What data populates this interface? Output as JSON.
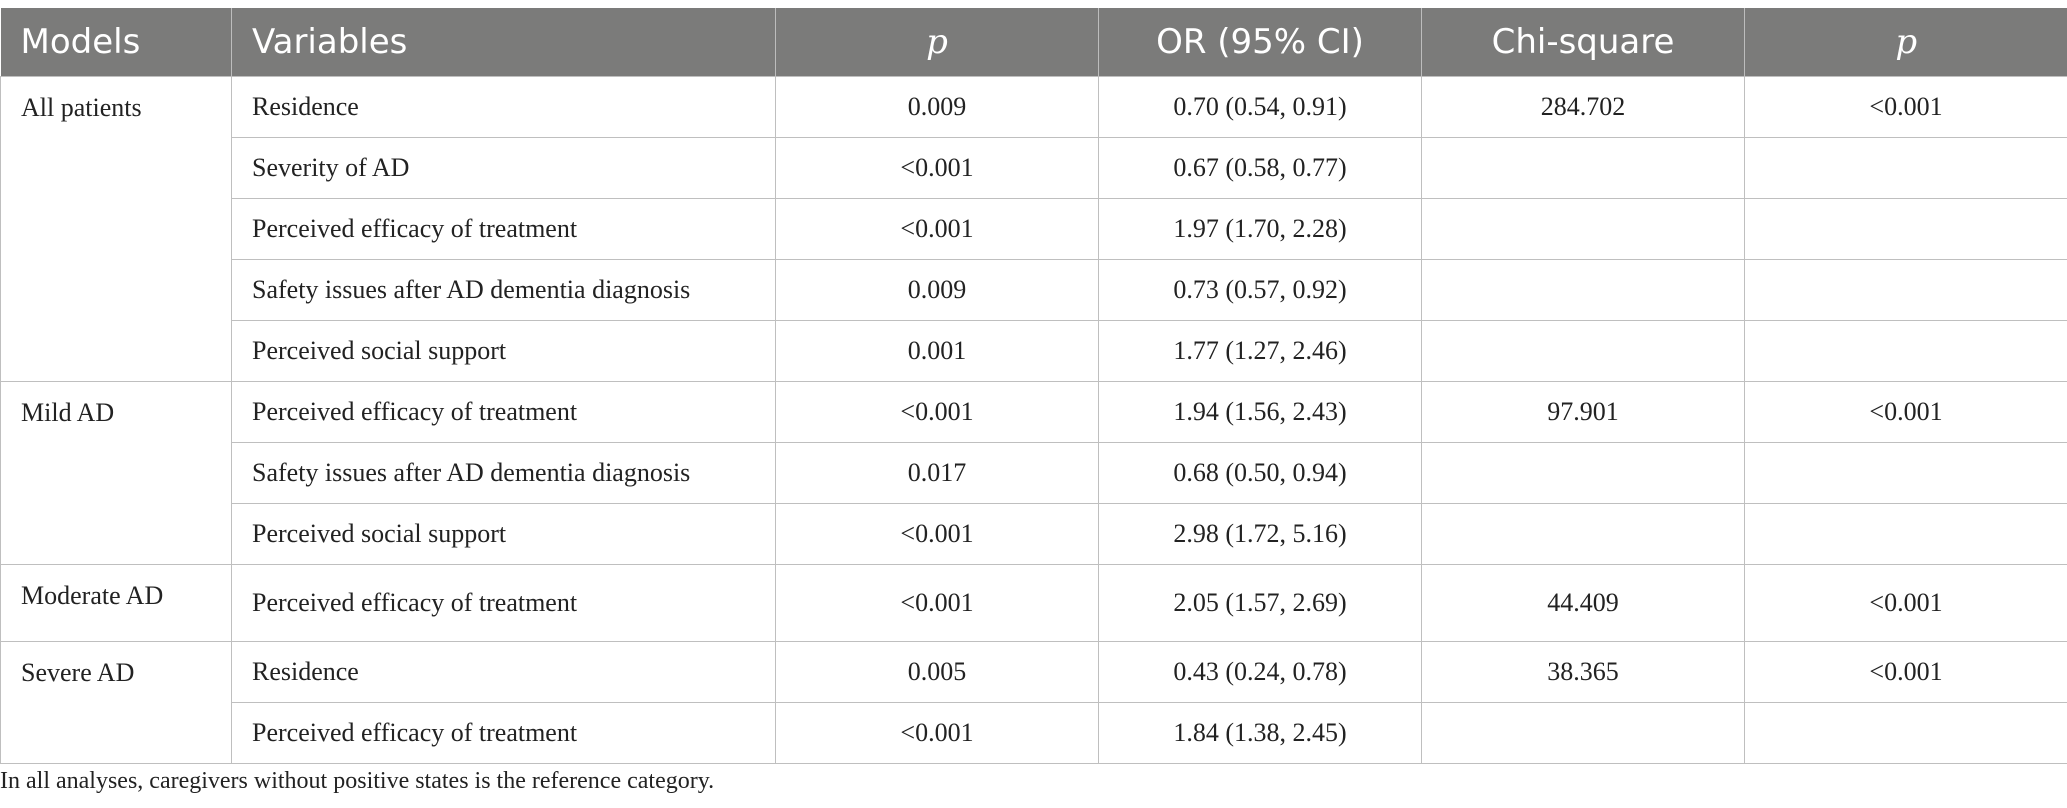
{
  "headers": [
    "Models",
    "Variables",
    "p",
    "OR (95% CI)",
    "Chi-square",
    "p"
  ],
  "groups": [
    {
      "model": "All patients",
      "chi_square": "284.702",
      "model_p": "<0.001",
      "rows": [
        {
          "variable": "Residence",
          "p": "0.009",
          "or_ci": "0.70 (0.54, 0.91)"
        },
        {
          "variable": "Severity of AD",
          "p": "<0.001",
          "or_ci": "0.67 (0.58, 0.77)"
        },
        {
          "variable": "Perceived efficacy of treatment",
          "p": "<0.001",
          "or_ci": "1.97 (1.70, 2.28)"
        },
        {
          "variable": "Safety issues after AD dementia diagnosis",
          "p": "0.009",
          "or_ci": "0.73 (0.57, 0.92)"
        },
        {
          "variable": "Perceived social support",
          "p": "0.001",
          "or_ci": "1.77 (1.27, 2.46)"
        }
      ]
    },
    {
      "model": "Mild AD",
      "chi_square": "97.901",
      "model_p": "<0.001",
      "rows": [
        {
          "variable": "Perceived efficacy of treatment",
          "p": "<0.001",
          "or_ci": "1.94 (1.56, 2.43)"
        },
        {
          "variable": "Safety issues after AD dementia diagnosis",
          "p": "0.017",
          "or_ci": "0.68 (0.50, 0.94)"
        },
        {
          "variable": "Perceived social support",
          "p": "<0.001",
          "or_ci": "2.98 (1.72, 5.16)"
        }
      ]
    },
    {
      "model": "Moderate AD",
      "chi_square": "44.409",
      "model_p": "<0.001",
      "rows": [
        {
          "variable": "Perceived efficacy of treatment",
          "p": "<0.001",
          "or_ci": "2.05 (1.57, 2.69)"
        }
      ]
    },
    {
      "model": "Severe AD",
      "chi_square": "38.365",
      "model_p": "<0.001",
      "rows": [
        {
          "variable": "Residence",
          "p": "0.005",
          "or_ci": "0.43 (0.24, 0.78)"
        },
        {
          "variable": "Perceived efficacy of treatment",
          "p": "<0.001",
          "or_ci": "1.84 (1.38, 2.45)"
        }
      ]
    }
  ],
  "footnote": "In all analyses, caregivers without positive states is the reference category."
}
